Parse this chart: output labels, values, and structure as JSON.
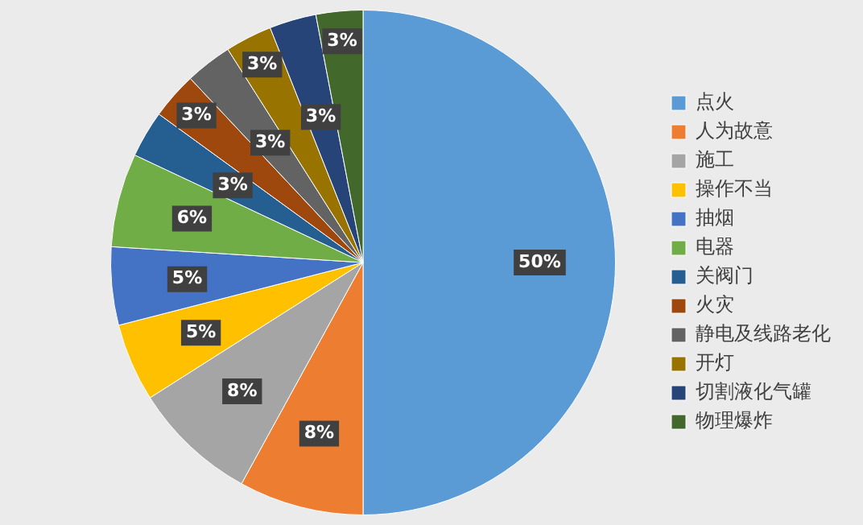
{
  "chart_data": {
    "type": "pie",
    "categories": [
      "点火",
      "人为故意",
      "施工",
      "操作不当",
      "抽烟",
      "电器",
      "关阀门",
      "火灾",
      "静电及线路老化",
      "开灯",
      "切割液化气罐",
      "物理爆炸"
    ],
    "values": [
      50,
      8,
      8,
      5,
      5,
      6,
      3,
      3,
      3,
      3,
      3,
      3
    ],
    "value_labels": [
      "50%",
      "8%",
      "8%",
      "5%",
      "5%",
      "6%",
      "3%",
      "3%",
      "3%",
      "3%",
      "3%",
      "3%"
    ],
    "colors": [
      "#5b9bd5",
      "#ed7d31",
      "#a5a5a5",
      "#ffc000",
      "#4472c4",
      "#70ad47",
      "#255e91",
      "#9e480e",
      "#636363",
      "#997300",
      "#264478",
      "#43682b"
    ],
    "legend": "right"
  }
}
